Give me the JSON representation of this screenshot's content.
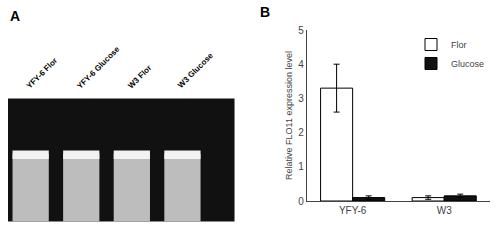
{
  "chart_data": {
    "type": "bar",
    "title": "B",
    "annotations": [
      "A",
      "YFY-6 Flor",
      "YFY-6 Glucose",
      "W3 Flor",
      "W3 Glucose"
    ],
    "categories": [
      "YFY-6",
      "W3"
    ],
    "series": [
      {
        "name": "Flor",
        "color": "#ffffff",
        "values": [
          3.3,
          0.1
        ],
        "errors": [
          0.7,
          0.05
        ]
      },
      {
        "name": "Glucose",
        "color": "#111111",
        "values": [
          0.1,
          0.15
        ],
        "errors": [
          0.05,
          0.05
        ]
      }
    ],
    "ylabel": "Relative FLO11 expression level",
    "ylim": [
      0,
      5
    ],
    "yticks": [
      0,
      1,
      2,
      3,
      4,
      5
    ],
    "grid": false,
    "legend": "upper right"
  }
}
